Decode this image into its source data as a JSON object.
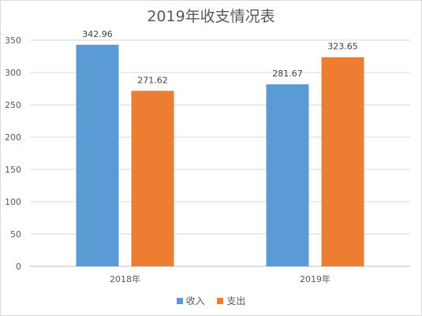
{
  "chart_data": {
    "type": "bar",
    "title": "2019年收支情况表",
    "categories": [
      "2018年",
      "2019年"
    ],
    "series": [
      {
        "name": "收入",
        "values": [
          342.96,
          281.67
        ],
        "color": "#5b9bd5"
      },
      {
        "name": "支出",
        "values": [
          271.62,
          323.65
        ],
        "color": "#ed7d31"
      }
    ],
    "yticks": [
      0,
      50,
      100,
      150,
      200,
      250,
      300,
      350
    ],
    "ylim": [
      0,
      350
    ],
    "grid": true,
    "legend": "bottom"
  }
}
